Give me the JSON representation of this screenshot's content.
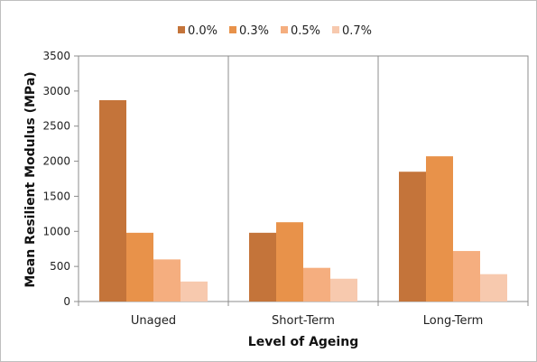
{
  "chart_data": {
    "type": "bar",
    "title": "",
    "xlabel": "Level of Ageing",
    "ylabel": "Mean Resilient Modulus (MPa)",
    "ylim": [
      0,
      3500
    ],
    "yticks": [
      0,
      500,
      1000,
      1500,
      2000,
      2500,
      3000,
      3500
    ],
    "grid": "vertical-category-separators",
    "legend": "top",
    "categories": [
      "Unaged",
      "Short-Term",
      "Long-Term"
    ],
    "series": [
      {
        "name": "0.0%",
        "color": "#C4743A",
        "values": [
          2870,
          980,
          1850
        ]
      },
      {
        "name": "0.3%",
        "color": "#E8924A",
        "values": [
          980,
          1130,
          2070
        ]
      },
      {
        "name": "0.5%",
        "color": "#F5AE7F",
        "values": [
          600,
          480,
          720
        ]
      },
      {
        "name": "0.7%",
        "color": "#F7C9AE",
        "values": [
          285,
          325,
          390
        ]
      }
    ]
  }
}
